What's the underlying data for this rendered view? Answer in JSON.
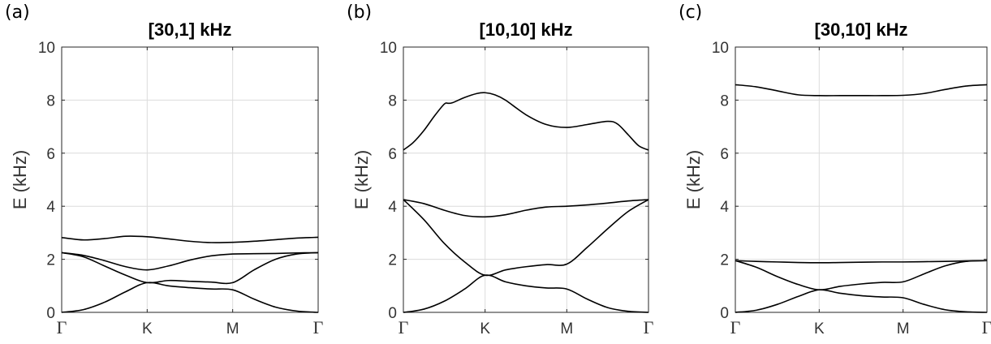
{
  "chart_data": [
    {
      "type": "line",
      "panel_label": "(a)",
      "title": "[30,1] kHz",
      "xlabel": "",
      "ylabel": "E (kHz)",
      "xticks": [
        "Γ",
        "K",
        "M",
        "Γ"
      ],
      "ylim": [
        0,
        10
      ],
      "yticks": [
        "0",
        "2",
        "4",
        "6",
        "8",
        "10"
      ],
      "grid": true,
      "series": [
        {
          "x": [
            0,
            0.25,
            0.5,
            0.75,
            1,
            1.25,
            1.5,
            1.75,
            2,
            2.25,
            2.5,
            2.75,
            3
          ],
          "values": [
            2.82,
            2.73,
            2.78,
            2.87,
            2.85,
            2.77,
            2.68,
            2.63,
            2.64,
            2.68,
            2.74,
            2.8,
            2.83
          ]
        },
        {
          "x": [
            0,
            0.25,
            0.5,
            0.75,
            1,
            1.25,
            1.5,
            1.75,
            2,
            2.25,
            2.5,
            2.75,
            3
          ],
          "values": [
            2.25,
            2.15,
            1.95,
            1.72,
            1.6,
            1.75,
            1.97,
            2.13,
            2.2,
            2.21,
            2.22,
            2.24,
            2.25
          ]
        },
        {
          "x": [
            0,
            0.25,
            0.5,
            0.75,
            1,
            1.25,
            1.5,
            1.75,
            2,
            2.25,
            2.5,
            2.75,
            3
          ],
          "values": [
            2.25,
            2.1,
            1.75,
            1.4,
            1.12,
            1.2,
            1.17,
            1.14,
            1.12,
            1.6,
            2.0,
            2.2,
            2.25
          ]
        },
        {
          "x": [
            0,
            0.25,
            0.5,
            0.75,
            1,
            1.25,
            1.5,
            1.75,
            2,
            2.25,
            2.5,
            2.75,
            3
          ],
          "values": [
            0.0,
            0.1,
            0.38,
            0.78,
            1.12,
            1.0,
            0.93,
            0.88,
            0.85,
            0.5,
            0.2,
            0.05,
            0.0
          ]
        }
      ]
    },
    {
      "type": "line",
      "panel_label": "(b)",
      "title": "[10,10] kHz",
      "xlabel": "",
      "ylabel": "E (kHz)",
      "xticks": [
        "Γ",
        "K",
        "M",
        "Γ"
      ],
      "ylim": [
        0,
        10
      ],
      "yticks": [
        "0",
        "2",
        "4",
        "6",
        "8",
        "10"
      ],
      "grid": true,
      "series": [
        {
          "x": [
            0,
            0.12,
            0.25,
            0.38,
            0.5,
            0.55,
            0.6,
            0.75,
            0.9,
            1,
            1.12,
            1.25,
            1.5,
            1.75,
            2,
            2.25,
            2.5,
            2.62,
            2.75,
            2.88,
            3
          ],
          "values": [
            6.12,
            6.4,
            6.85,
            7.4,
            7.85,
            7.88,
            7.9,
            8.1,
            8.25,
            8.28,
            8.2,
            8.0,
            7.45,
            7.08,
            6.97,
            7.08,
            7.2,
            7.1,
            6.7,
            6.28,
            6.12
          ]
        },
        {
          "x": [
            0,
            0.25,
            0.5,
            0.75,
            1,
            1.25,
            1.5,
            1.75,
            2,
            2.25,
            2.5,
            2.75,
            3
          ],
          "values": [
            4.25,
            4.1,
            3.85,
            3.65,
            3.6,
            3.68,
            3.85,
            3.97,
            4.0,
            4.05,
            4.12,
            4.2,
            4.25
          ]
        },
        {
          "x": [
            0,
            0.25,
            0.5,
            0.75,
            1,
            1.25,
            1.5,
            1.75,
            2,
            2.25,
            2.5,
            2.75,
            3
          ],
          "values": [
            4.25,
            3.5,
            2.6,
            1.9,
            1.4,
            1.6,
            1.72,
            1.8,
            1.82,
            2.45,
            3.15,
            3.8,
            4.25
          ]
        },
        {
          "x": [
            0,
            0.25,
            0.5,
            0.75,
            1,
            1.25,
            1.5,
            1.75,
            2,
            2.25,
            2.5,
            2.75,
            3
          ],
          "values": [
            0.0,
            0.12,
            0.42,
            0.88,
            1.4,
            1.15,
            1.0,
            0.92,
            0.88,
            0.5,
            0.18,
            0.04,
            0.0
          ]
        }
      ]
    },
    {
      "type": "line",
      "panel_label": "(c)",
      "title": "[30,10] kHz",
      "xlabel": "",
      "ylabel": "E (kHz)",
      "xticks": [
        "Γ",
        "K",
        "M",
        "Γ"
      ],
      "ylim": [
        0,
        10
      ],
      "yticks": [
        "0",
        "2",
        "4",
        "6",
        "8",
        "10"
      ],
      "grid": true,
      "series": [
        {
          "x": [
            0,
            0.25,
            0.5,
            0.75,
            1,
            1.25,
            1.5,
            1.75,
            2,
            2.25,
            2.5,
            2.75,
            3
          ],
          "values": [
            8.58,
            8.5,
            8.35,
            8.2,
            8.17,
            8.17,
            8.17,
            8.17,
            8.18,
            8.25,
            8.4,
            8.53,
            8.58
          ]
        },
        {
          "x": [
            0,
            0.25,
            0.5,
            0.75,
            1,
            1.25,
            1.5,
            1.75,
            2,
            2.25,
            2.5,
            2.75,
            3
          ],
          "values": [
            1.95,
            1.92,
            1.9,
            1.88,
            1.87,
            1.88,
            1.89,
            1.9,
            1.9,
            1.91,
            1.92,
            1.94,
            1.95
          ]
        },
        {
          "x": [
            0,
            0.25,
            0.5,
            0.75,
            1,
            1.25,
            1.5,
            1.75,
            2,
            2.25,
            2.5,
            2.75,
            3
          ],
          "values": [
            1.95,
            1.7,
            1.35,
            1.05,
            0.85,
            0.98,
            1.07,
            1.13,
            1.15,
            1.45,
            1.75,
            1.92,
            1.95
          ]
        },
        {
          "x": [
            0,
            0.25,
            0.5,
            0.75,
            1,
            1.25,
            1.5,
            1.75,
            2,
            2.25,
            2.5,
            2.75,
            3
          ],
          "values": [
            0.0,
            0.08,
            0.3,
            0.6,
            0.85,
            0.72,
            0.63,
            0.58,
            0.55,
            0.3,
            0.1,
            0.02,
            0.0
          ]
        }
      ]
    }
  ]
}
